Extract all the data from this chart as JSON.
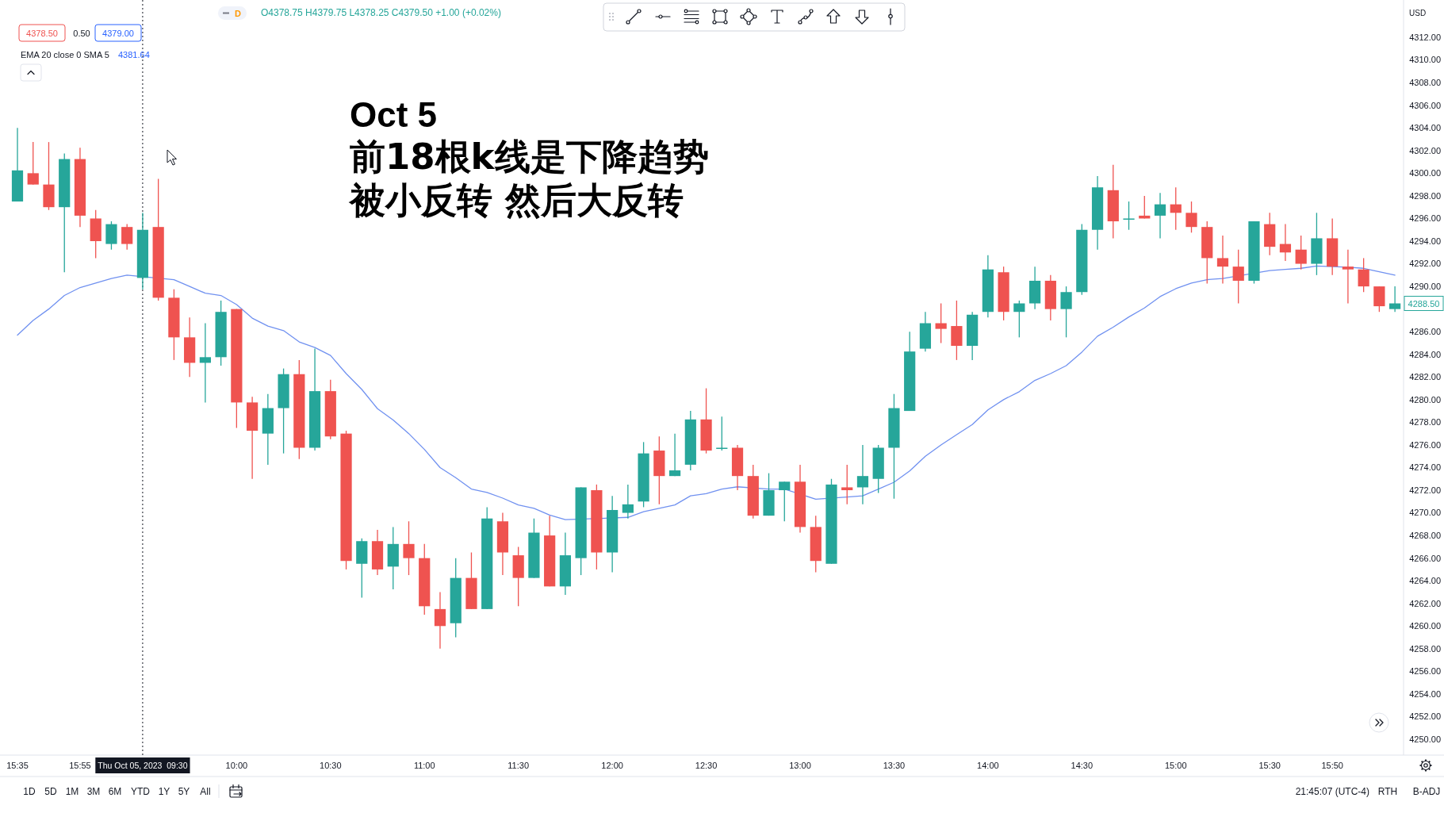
{
  "chart_data": {
    "type": "candlestick",
    "title": "Oct 5",
    "subtitle": "前18根k线是下降趋势",
    "categories": [
      "15:35",
      null,
      null,
      null,
      "15:55",
      null,
      null,
      null,
      "Thu Oct 05, 2023  09:30",
      null,
      null,
      null,
      null,
      null,
      "10:00",
      null,
      null,
      null,
      null,
      null,
      "10:30",
      null,
      null,
      null,
      null,
      null,
      "11:00",
      null,
      null,
      null,
      null,
      null,
      "11:30",
      null,
      null,
      null,
      null,
      null,
      "12:00",
      null,
      null,
      null,
      null,
      null,
      "12:30",
      null,
      null,
      null,
      null,
      null,
      "13:00",
      null,
      null,
      null,
      null,
      null,
      "13:30",
      null,
      null,
      null,
      null,
      null,
      "14:00",
      null,
      null,
      null,
      null,
      null,
      "14:30",
      null,
      null,
      null,
      null,
      null,
      "15:00",
      null,
      null,
      null,
      null,
      null,
      "15:30",
      null,
      null,
      null,
      "15:50",
      null,
      null,
      null,
      null
    ],
    "ohlc": [
      [
        4297.5,
        4304,
        4297.5,
        4300.25
      ],
      [
        4300.0,
        4302.75,
        4299.0,
        4299.0
      ],
      [
        4299.0,
        4302.75,
        4296.75,
        4297.0
      ],
      [
        4297.0,
        4301.75,
        4291.25,
        4301.25
      ],
      [
        4301.25,
        4302.25,
        4295.25,
        4296.25
      ],
      [
        4296.0,
        4296.75,
        4292.5,
        4294.0
      ],
      [
        4293.75,
        4295.75,
        4293.25,
        4295.5
      ],
      [
        4295.25,
        4295.5,
        4293.25,
        4293.75
      ],
      [
        4290.75,
        4296.5,
        4289.75,
        4295.0
      ],
      [
        4295.25,
        4299.5,
        4288.75,
        4289.0
      ],
      [
        4289.0,
        4289.75,
        4283.5,
        4285.5
      ],
      [
        4285.5,
        4287.25,
        4282.0,
        4283.25
      ],
      [
        4283.25,
        4286.75,
        4279.75,
        4283.75
      ],
      [
        4283.75,
        4288.75,
        4283.0,
        4287.75
      ],
      [
        4288.0,
        4288.0,
        4277.5,
        4279.75
      ],
      [
        4279.75,
        4280.25,
        4273.0,
        4277.25
      ],
      [
        4277.0,
        4280.5,
        4274.25,
        4279.25
      ],
      [
        4279.25,
        4282.75,
        4275.25,
        4282.25
      ],
      [
        4282.25,
        4283.5,
        4274.75,
        4275.75
      ],
      [
        4275.75,
        4284.5,
        4275.5,
        4280.75
      ],
      [
        4280.75,
        4281.75,
        4276.5,
        4276.75
      ],
      [
        4277.0,
        4277.25,
        4265.0,
        4265.75
      ],
      [
        4265.5,
        4267.75,
        4262.5,
        4267.5
      ],
      [
        4267.5,
        4268.5,
        4264.5,
        4265.0
      ],
      [
        4265.25,
        4268.75,
        4263.25,
        4267.25
      ],
      [
        4267.25,
        4269.25,
        4264.5,
        4266.0
      ],
      [
        4266.0,
        4267.25,
        4261.0,
        4261.75
      ],
      [
        4261.5,
        4263.0,
        4258.0,
        4260.0
      ],
      [
        4260.25,
        4266.0,
        4259.0,
        4264.25
      ],
      [
        4264.25,
        4266.5,
        4261.5,
        4261.5
      ],
      [
        4261.5,
        4270.5,
        4261.5,
        4269.5
      ],
      [
        4269.25,
        4270.0,
        4264.5,
        4266.5
      ],
      [
        4266.25,
        4267.0,
        4261.75,
        4264.25
      ],
      [
        4264.25,
        4269.5,
        4264.25,
        4268.25
      ],
      [
        4268.0,
        4269.75,
        4263.5,
        4263.5
      ],
      [
        4263.5,
        4268.25,
        4262.75,
        4266.25
      ],
      [
        4266.0,
        4272.25,
        4264.5,
        4272.25
      ],
      [
        4272.0,
        4272.5,
        4265.0,
        4266.5
      ],
      [
        4266.5,
        4271.5,
        4264.75,
        4270.25
      ],
      [
        4270.0,
        4272.5,
        4269.5,
        4270.75
      ],
      [
        4271.0,
        4276.25,
        4270.5,
        4275.25
      ],
      [
        4275.5,
        4276.75,
        4270.75,
        4273.25
      ],
      [
        4273.25,
        4277.0,
        4273.25,
        4273.75
      ],
      [
        4274.25,
        4279.0,
        4273.75,
        4278.25
      ],
      [
        4278.25,
        4281.0,
        4275.25,
        4275.5
      ],
      [
        4275.75,
        4278.5,
        4275.5,
        4275.75
      ],
      [
        4275.75,
        4276.0,
        4272.0,
        4273.25
      ],
      [
        4273.25,
        4274.25,
        4269.5,
        4269.75
      ],
      [
        4269.75,
        4273.5,
        4269.75,
        4272.0
      ],
      [
        4272.0,
        4272.75,
        4269.25,
        4272.75
      ],
      [
        4272.75,
        4274.25,
        4268.25,
        4268.75
      ],
      [
        4268.75,
        4269.75,
        4264.75,
        4265.75
      ],
      [
        4265.5,
        4273.0,
        4265.5,
        4272.5
      ],
      [
        4272.25,
        4274.25,
        4270.75,
        4272.0
      ],
      [
        4272.25,
        4276.0,
        4270.75,
        4273.25
      ],
      [
        4273.0,
        4276.0,
        4271.75,
        4275.75
      ],
      [
        4275.75,
        4280.5,
        4271.25,
        4279.25
      ],
      [
        4279.0,
        4286.0,
        4279.0,
        4284.25
      ],
      [
        4284.5,
        4287.75,
        4284.25,
        4286.75
      ],
      [
        4286.75,
        4288.5,
        4285.0,
        4286.25
      ],
      [
        4286.5,
        4288.75,
        4283.5,
        4284.75
      ],
      [
        4284.75,
        4287.75,
        4283.5,
        4287.5
      ],
      [
        4287.75,
        4292.75,
        4287.25,
        4291.5
      ],
      [
        4291.25,
        4291.75,
        4287.0,
        4287.75
      ],
      [
        4287.75,
        4288.75,
        4285.5,
        4288.5
      ],
      [
        4288.5,
        4291.75,
        4288.0,
        4290.5
      ],
      [
        4290.5,
        4291.0,
        4287.0,
        4288.0
      ],
      [
        4288.0,
        4290.0,
        4285.5,
        4289.5
      ],
      [
        4289.5,
        4295.5,
        4289.25,
        4295.0
      ],
      [
        4295.0,
        4299.75,
        4293.25,
        4298.75
      ],
      [
        4298.5,
        4300.75,
        4294.25,
        4295.75
      ],
      [
        4296.0,
        4297.5,
        4295.0,
        4296.0
      ],
      [
        4296.25,
        4298.0,
        4296.0,
        4296.0
      ],
      [
        4296.25,
        4298.25,
        4294.25,
        4297.25
      ],
      [
        4297.25,
        4298.75,
        4295.0,
        4296.5
      ],
      [
        4296.5,
        4297.5,
        4294.75,
        4295.25
      ],
      [
        4295.25,
        4295.75,
        4290.25,
        4292.5
      ],
      [
        4292.5,
        4294.5,
        4290.25,
        4291.75
      ],
      [
        4291.75,
        4293.25,
        4288.5,
        4290.5
      ],
      [
        4290.5,
        4295.75,
        4290.25,
        4295.75
      ],
      [
        4295.5,
        4296.5,
        4292.75,
        4293.5
      ],
      [
        4293.75,
        4295.5,
        4292.25,
        4293.0
      ],
      [
        4293.25,
        4294.5,
        4291.5,
        4292.0
      ],
      [
        4292.0,
        4296.5,
        4291.0,
        4294.25
      ],
      [
        4294.25,
        4296.0,
        4291.0,
        4291.75
      ],
      [
        4291.75,
        4293.25,
        4288.5,
        4291.5
      ],
      [
        4291.5,
        4292.5,
        4289.5,
        4290.0
      ],
      [
        4290.0,
        4290.0,
        4287.75,
        4288.25
      ],
      [
        4288.0,
        4290.0,
        4287.75,
        4288.5
      ]
    ],
    "colors": [
      "#26a69a",
      "#ef5350",
      "#ef5350",
      "#26a69a",
      "#ef5350",
      "#ef5350",
      "#26a69a",
      "#ef5350",
      "#26a69a",
      "#ef5350",
      "#ef5350",
      "#ef5350",
      "#26a69a",
      "#26a69a",
      "#ef5350",
      "#ef5350",
      "#26a69a",
      "#26a69a",
      "#ef5350",
      "#26a69a",
      "#ef5350",
      "#ef5350",
      "#26a69a",
      "#ef5350",
      "#26a69a",
      "#ef5350",
      "#ef5350",
      "#ef5350",
      "#26a69a",
      "#ef5350",
      "#26a69a",
      "#ef5350",
      "#ef5350",
      "#26a69a",
      "#ef5350",
      "#26a69a",
      "#26a69a",
      "#ef5350",
      "#26a69a",
      "#26a69a",
      "#26a69a",
      "#ef5350",
      "#26a69a",
      "#26a69a",
      "#ef5350",
      "#26a69a",
      "#ef5350",
      "#ef5350",
      "#26a69a",
      "#26a69a",
      "#ef5350",
      "#ef5350",
      "#26a69a",
      "#ef5350",
      "#26a69a",
      "#26a69a",
      "#26a69a",
      "#26a69a",
      "#26a69a",
      "#ef5350",
      "#ef5350",
      "#26a69a",
      "#26a69a",
      "#ef5350",
      "#26a69a",
      "#26a69a",
      "#ef5350",
      "#26a69a",
      "#26a69a",
      "#26a69a",
      "#ef5350",
      "#26a69a",
      "#ef5350",
      "#26a69a",
      "#ef5350",
      "#ef5350",
      "#ef5350",
      "#ef5350",
      "#ef5350",
      "#26a69a",
      "#ef5350",
      "#ef5350",
      "#ef5350",
      "#26a69a",
      "#ef5350",
      "#ef5350",
      "#ef5350",
      "#ef5350",
      "#26a69a"
    ],
    "series": [
      {
        "type": "line",
        "color": "#7091f0",
        "values": [
          4285.7,
          4287.0,
          4288.0,
          4289.2,
          4289.9,
          4290.3,
          4290.7,
          4291.0,
          null,
          null,
          4290.6,
          4290.0,
          4289.4,
          4289.2,
          4288.4,
          4287.2,
          4286.5,
          4286.1,
          4285.1,
          4284.6,
          4283.9,
          4282.3,
          4280.9,
          4279.2,
          4278.2,
          4277.0,
          4275.6,
          4274.0,
          4273.1,
          4272.1,
          4271.8,
          4271.3,
          4270.7,
          4270.4,
          4269.8,
          4269.4,
          null,
          null,
          null,
          4269.6,
          4270.1,
          4270.4,
          4270.7,
          4271.5,
          4271.7,
          4272.1,
          4272.3,
          null,
          4272.1,
          4272.1,
          null,
          4271.2,
          null,
          4271.4,
          4271.5,
          4272.1,
          4272.7,
          4273.7,
          4275.0,
          4276.0,
          4276.9,
          4277.8,
          4279.1,
          4280.0,
          4280.7,
          4281.7,
          4282.3,
          4283.0,
          4284.2,
          4285.6,
          4286.4,
          4287.3,
          4288.1,
          4289.1,
          4289.8,
          4290.3,
          4290.6,
          4290.7,
          null,
          null,
          4291.4,
          4291.5,
          4291.6,
          4291.8,
          null,
          4291.7,
          4291.6,
          4291.3,
          4291.0
        ]
      }
    ],
    "ylim": [
      4248.6,
      4315.3
    ],
    "yticks": [
      {
        "value": 4250,
        "label": "4250.00"
      },
      {
        "value": 4252,
        "label": "4252.00"
      },
      {
        "value": 4254,
        "label": "4254.00"
      },
      {
        "value": 4256,
        "label": "4256.00"
      },
      {
        "value": 4258,
        "label": "4258.00"
      },
      {
        "value": 4260,
        "label": "4260.00"
      },
      {
        "value": 4262,
        "label": "4262.00"
      },
      {
        "value": 4264,
        "label": "4264.00"
      },
      {
        "value": 4266,
        "label": "4266.00"
      },
      {
        "value": 4268,
        "label": "4268.00"
      },
      {
        "value": 4270,
        "label": "4270.00"
      },
      {
        "value": 4272,
        "label": "4272.00"
      },
      {
        "value": 4274,
        "label": "4274.00"
      },
      {
        "value": 4276,
        "label": "4276.00"
      },
      {
        "value": 4278,
        "label": "4278.00"
      },
      {
        "value": 4280,
        "label": "4280.00"
      },
      {
        "value": 4282,
        "label": "4282.00"
      },
      {
        "value": 4284,
        "label": "4284.00"
      },
      {
        "value": 4286,
        "label": "4286.00"
      },
      {
        "value": 4290,
        "label": "4290.00"
      },
      {
        "value": 4292,
        "label": "4292.00"
      },
      {
        "value": 4294,
        "label": "4294.00"
      },
      {
        "value": 4296,
        "label": "4296.00"
      },
      {
        "value": 4298,
        "label": "4298.00"
      },
      {
        "value": 4300,
        "label": "4300.00"
      },
      {
        "value": 4302,
        "label": "4302.00"
      },
      {
        "value": 4304,
        "label": "4304.00"
      },
      {
        "value": 4306,
        "label": "4306.00"
      },
      {
        "value": 4308,
        "label": "4308.00"
      },
      {
        "value": 4310,
        "label": "4310.00"
      },
      {
        "value": 4312,
        "label": "4312.00"
      }
    ],
    "ref_lines": [
      {
        "axis": "x",
        "value": "Thu Oct 05, 2023  09:30",
        "line_style": "dotted",
        "color": "#131722"
      }
    ],
    "annotations": [
      "被小反转 然后大反转",
      "O4378.75 H4379.75 L4378.25 C4379.50 +1.00 (+0.02%)",
      "D",
      "4378.50",
      "0.50",
      "4379.00",
      "EMA 20 close 0 SMA 5",
      "4381.64",
      "USD",
      "4288.50",
      "1D",
      "5D",
      "1M",
      "3M",
      "6M",
      "YTD",
      "1Y",
      "5Y",
      "All",
      "21:45:07 (UTC-4)",
      "RTH",
      "B-ADJ"
    ]
  }
}
